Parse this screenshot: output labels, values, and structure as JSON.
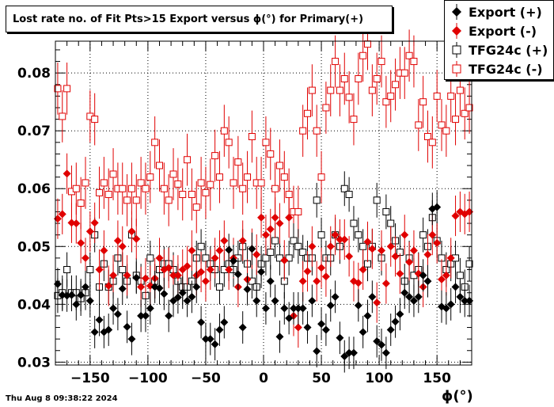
{
  "title": "Lost rate no. of Fit Pts>15 Export versus ϕ(°) for Primary(+)",
  "timestamp": "Thu Aug  8 09:38:22 2024",
  "chart_data": {
    "type": "scatter",
    "xlabel": "ϕ(°)",
    "ylabel": "",
    "xlim": [
      -180,
      180
    ],
    "ylim": [
      0.0295,
      0.0855
    ],
    "xticks": [
      -150,
      -100,
      -50,
      0,
      50,
      100,
      150
    ],
    "yticks": [
      0.03,
      0.04,
      0.05,
      0.06,
      0.07,
      0.08
    ],
    "xtick_labels": [
      "−150",
      "−100",
      "−50",
      "0",
      "50",
      "100",
      "150"
    ],
    "ytick_labels": [
      "0.03",
      "0.04",
      "0.05",
      "0.06",
      "0.07",
      "0.08"
    ],
    "grid": true,
    "legend_position": "top-right",
    "bin_width": 4,
    "x": [
      -178,
      -174,
      -170,
      -166,
      -162,
      -158,
      -154,
      -150,
      -146,
      -142,
      -138,
      -134,
      -130,
      -126,
      -122,
      -118,
      -114,
      -110,
      -106,
      -102,
      -98,
      -94,
      -90,
      -86,
      -82,
      -78,
      -74,
      -70,
      -66,
      -62,
      -58,
      -54,
      -50,
      -46,
      -42,
      -38,
      -34,
      -30,
      -26,
      -22,
      -18,
      -14,
      -10,
      -6,
      -2,
      2,
      6,
      10,
      14,
      18,
      22,
      26,
      30,
      34,
      38,
      42,
      46,
      50,
      54,
      58,
      62,
      66,
      70,
      74,
      78,
      82,
      86,
      90,
      94,
      98,
      102,
      106,
      110,
      114,
      118,
      122,
      126,
      130,
      134,
      138,
      142,
      146,
      150,
      154,
      158,
      162,
      166,
      170,
      174,
      178
    ],
    "series": [
      {
        "name": "Export (+)",
        "color": "#000000",
        "marker": "filled-diamond",
        "err": 0.0028,
        "values": [
          0.0435,
          0.0416,
          0.0415,
          0.0416,
          0.04,
          0.0416,
          0.043,
          0.0406,
          0.0352,
          0.0373,
          0.0352,
          0.0356,
          0.0393,
          0.0383,
          0.0427,
          0.0361,
          0.034,
          0.0446,
          0.038,
          0.038,
          0.0393,
          0.043,
          0.0428,
          0.0418,
          0.038,
          0.0406,
          0.0412,
          0.042,
          0.0406,
          0.0413,
          0.043,
          0.0369,
          0.034,
          0.034,
          0.0331,
          0.0356,
          0.0369,
          0.0494,
          0.0475,
          0.0452,
          0.036,
          0.0426,
          0.0496,
          0.0406,
          0.0456,
          0.0393,
          0.044,
          0.0406,
          0.0344,
          0.0393,
          0.0376,
          0.0393,
          0.0393,
          0.0393,
          0.036,
          0.0406,
          0.0319,
          0.0366,
          0.0356,
          0.0398,
          0.0413,
          0.0342,
          0.031,
          0.0316,
          0.0316,
          0.0398,
          0.0352,
          0.038,
          0.0413,
          0.0336,
          0.033,
          0.0316,
          0.0356,
          0.037,
          0.0383,
          0.042,
          0.0413,
          0.0406,
          0.0413,
          0.045,
          0.044,
          0.0565,
          0.0568,
          0.0396,
          0.0393,
          0.04,
          0.043,
          0.0413,
          0.0406,
          0.0406
        ]
      },
      {
        "name": "Export (-)",
        "color": "#e00000",
        "marker": "filled-diamond",
        "err": 0.0035,
        "values": [
          0.0548,
          0.0556,
          0.0626,
          0.0541,
          0.054,
          0.0506,
          0.048,
          0.0526,
          0.0541,
          0.046,
          0.0493,
          0.0432,
          0.045,
          0.051,
          0.05,
          0.045,
          0.0526,
          0.0513,
          0.043,
          0.0445,
          0.0432,
          0.0445,
          0.048,
          0.046,
          0.0463,
          0.045,
          0.045,
          0.046,
          0.0466,
          0.0493,
          0.045,
          0.0456,
          0.044,
          0.046,
          0.048,
          0.0493,
          0.051,
          0.046,
          0.048,
          0.043,
          0.051,
          0.0443,
          0.0496,
          0.0486,
          0.055,
          0.052,
          0.053,
          0.055,
          0.054,
          0.0476,
          0.055,
          0.038,
          0.036,
          0.044,
          0.0457,
          0.05,
          0.044,
          0.0463,
          0.0448,
          0.05,
          0.052,
          0.0512,
          0.0512,
          0.0483,
          0.044,
          0.0437,
          0.046,
          0.0508,
          0.0496,
          0.0403,
          0.0493,
          0.0436,
          0.05,
          0.0483,
          0.0453,
          0.052,
          0.0473,
          0.0493,
          0.0453,
          0.043,
          0.0486,
          0.052,
          0.0506,
          0.0443,
          0.045,
          0.048,
          0.0553,
          0.056,
          0.0556,
          0.056
        ]
      },
      {
        "name": "TFG24c (+)",
        "color": "#000000",
        "marker": "open-square",
        "err": 0.003,
        "values": [
          0.0415,
          0.042,
          0.046,
          0.042,
          0.042,
          0.041,
          0.042,
          0.046,
          0.052,
          0.043,
          0.047,
          0.043,
          0.044,
          0.048,
          0.046,
          0.044,
          0.052,
          0.045,
          0.044,
          0.0415,
          0.048,
          0.044,
          0.046,
          0.047,
          0.047,
          0.046,
          0.044,
          0.043,
          0.043,
          0.044,
          0.048,
          0.05,
          0.048,
          0.047,
          0.046,
          0.043,
          0.046,
          0.047,
          0.046,
          0.048,
          0.05,
          0.047,
          0.044,
          0.043,
          0.047,
          0.048,
          0.049,
          0.051,
          0.048,
          0.044,
          0.048,
          0.051,
          0.05,
          0.049,
          0.048,
          0.048,
          0.058,
          0.052,
          0.048,
          0.048,
          0.052,
          0.05,
          0.06,
          0.059,
          0.054,
          0.052,
          0.05,
          0.047,
          0.05,
          0.058,
          0.048,
          0.056,
          0.054,
          0.051,
          0.049,
          0.044,
          0.048,
          0.045,
          0.046,
          0.052,
          0.05,
          0.055,
          0.051,
          0.048,
          0.046,
          0.047,
          0.048,
          0.045,
          0.043,
          0.047
        ]
      },
      {
        "name": "TFG24c (-)",
        "color": "#e00000",
        "marker": "open-square",
        "err": 0.0045,
        "values": [
          0.0773,
          0.0725,
          0.0773,
          0.0595,
          0.06,
          0.0575,
          0.061,
          0.0725,
          0.072,
          0.0593,
          0.061,
          0.059,
          0.0625,
          0.06,
          0.06,
          0.058,
          0.06,
          0.058,
          0.061,
          0.06,
          0.062,
          0.068,
          0.064,
          0.06,
          0.058,
          0.0625,
          0.0608,
          0.059,
          0.065,
          0.059,
          0.0568,
          0.061,
          0.0593,
          0.0607,
          0.0657,
          0.062,
          0.07,
          0.068,
          0.061,
          0.0646,
          0.06,
          0.062,
          0.069,
          0.061,
          0.061,
          0.068,
          0.066,
          0.06,
          0.064,
          0.062,
          0.059,
          0.056,
          0.056,
          0.07,
          0.073,
          0.077,
          0.07,
          0.062,
          0.074,
          0.077,
          0.082,
          0.077,
          0.079,
          0.0758,
          0.072,
          0.079,
          0.083,
          0.085,
          0.077,
          0.079,
          0.082,
          0.075,
          0.076,
          0.078,
          0.08,
          0.08,
          0.083,
          0.082,
          0.071,
          0.075,
          0.069,
          0.068,
          0.076,
          0.071,
          0.07,
          0.076,
          0.072,
          0.077,
          0.073,
          0.074
        ]
      }
    ]
  },
  "legend": {
    "items": [
      {
        "label": "Export (+)",
        "color": "#000000",
        "marker": "filled-diamond"
      },
      {
        "label": "Export (-)",
        "color": "#e00000",
        "marker": "filled-diamond"
      },
      {
        "label": "TFG24c (+)",
        "color": "#000000",
        "marker": "open-square"
      },
      {
        "label": "TFG24c (-)",
        "color": "#e00000",
        "marker": "open-square"
      }
    ]
  }
}
